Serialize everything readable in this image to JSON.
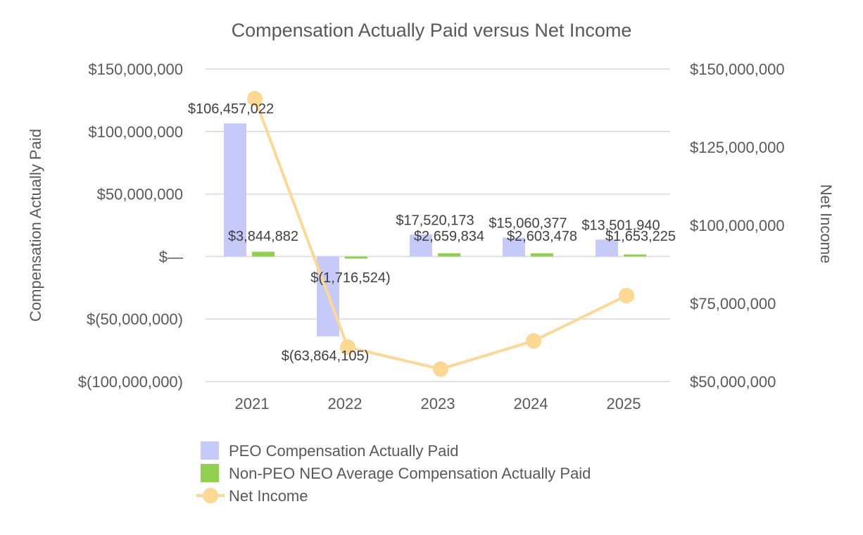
{
  "chart_data": {
    "type": "bar",
    "title": "Compensation Actually Paid versus Net Income",
    "categories": [
      "2021",
      "2022",
      "2023",
      "2024",
      "2025"
    ],
    "y_left": {
      "label": "Compensation Actually Paid",
      "ylim": [
        -100000000,
        150000000
      ],
      "ticks": [
        150000000,
        100000000,
        50000000,
        0,
        -50000000,
        -100000000
      ],
      "tick_labels": [
        "$150,000,000",
        "$100,000,000",
        "$50,000,000",
        "$—",
        "$(50,000,000)",
        "$(100,000,000)"
      ]
    },
    "y_right": {
      "label": "Net Income",
      "ylim": [
        50000000,
        150000000
      ],
      "ticks": [
        150000000,
        125000000,
        100000000,
        75000000,
        50000000
      ],
      "tick_labels": [
        "$150,000,000",
        "$125,000,000",
        "$100,000,000",
        "$75,000,000",
        "$50,000,000"
      ]
    },
    "grid": true,
    "legend_position": "bottom",
    "series": [
      {
        "name": "PEO Compensation Actually Paid",
        "type": "bar",
        "axis": "left",
        "color": "#c5caf8",
        "values": [
          106457022,
          -63864105,
          17520173,
          15060377,
          13501940
        ],
        "labels": [
          "$106,457,022",
          "$(63,864,105)",
          "$17,520,173",
          "$15,060,377",
          "$13,501,940"
        ]
      },
      {
        "name": "Non-PEO NEO Average Compensation Actually Paid",
        "type": "bar",
        "axis": "left",
        "color": "#92d050",
        "values": [
          3844882,
          -1716524,
          2659834,
          2603478,
          1653225
        ],
        "labels": [
          "$3,844,882",
          "$(1,716,524)",
          "$2,659,834",
          "$2,603,478",
          "$1,653,225"
        ]
      },
      {
        "name": "Net Income",
        "type": "line",
        "axis": "right",
        "color": "#fcd893",
        "values": [
          140500000,
          61000000,
          54000000,
          63000000,
          77500000
        ]
      }
    ]
  },
  "colors": {
    "grid": "#d9d9d9",
    "text": "#595959"
  }
}
